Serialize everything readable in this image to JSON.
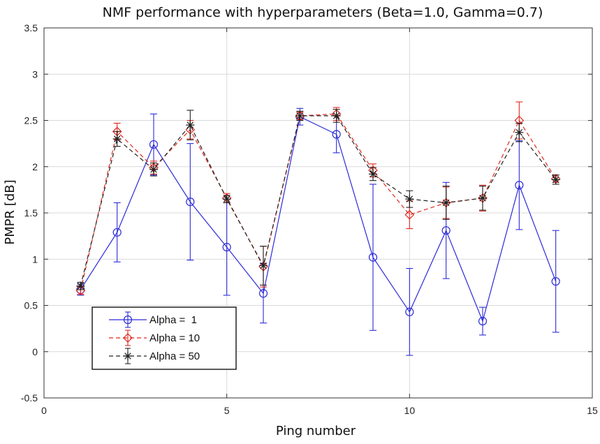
{
  "chart_data": {
    "type": "line",
    "title": "NMF performance with hyperparameters (Beta=1.0, Gamma=0.7)",
    "xlabel": "Ping number",
    "ylabel": "PMPR [dB]",
    "xlim": [
      0,
      15
    ],
    "ylim": [
      -0.5,
      3.5
    ],
    "xticks": [
      0,
      5,
      10,
      15
    ],
    "yticks": [
      -0.5,
      0,
      0.5,
      1,
      1.5,
      2,
      2.5,
      3,
      3.5
    ],
    "grid": true,
    "legend_position": "bottom-left",
    "x": [
      1,
      2,
      3,
      4,
      5,
      6,
      7,
      8,
      9,
      10,
      11,
      12,
      13,
      14
    ],
    "series": [
      {
        "name": "Alpha =  1",
        "color": "#2b2bd9",
        "marker": "circle",
        "linestyle": "solid",
        "values": [
          0.67,
          1.29,
          2.24,
          1.62,
          1.13,
          0.63,
          2.54,
          2.35,
          1.02,
          0.43,
          1.31,
          0.33,
          1.8,
          0.76
        ],
        "errors": [
          0.06,
          0.32,
          0.33,
          0.63,
          0.52,
          0.32,
          0.09,
          0.2,
          0.79,
          0.47,
          0.52,
          0.15,
          0.48,
          0.55
        ]
      },
      {
        "name": "Alpha = 10",
        "color": "#e0291f",
        "marker": "diamond",
        "linestyle": "dashed",
        "values": [
          0.66,
          2.38,
          1.99,
          2.4,
          1.66,
          0.92,
          2.55,
          2.57,
          1.96,
          1.48,
          1.61,
          1.66,
          2.5,
          1.87
        ],
        "errors": [
          0.04,
          0.09,
          0.07,
          0.1,
          0.05,
          0.22,
          0.04,
          0.07,
          0.07,
          0.15,
          0.17,
          0.14,
          0.2,
          0.04
        ]
      },
      {
        "name": "Alpha = 50",
        "color": "#222222",
        "marker": "asterisk",
        "linestyle": "dashed",
        "values": [
          0.71,
          2.3,
          1.97,
          2.45,
          1.65,
          0.93,
          2.55,
          2.55,
          1.92,
          1.65,
          1.61,
          1.66,
          2.37,
          1.86
        ],
        "errors": [
          0.04,
          0.08,
          0.07,
          0.16,
          0.04,
          0.21,
          0.05,
          0.07,
          0.07,
          0.09,
          0.18,
          0.13,
          0.1,
          0.05
        ]
      }
    ]
  }
}
